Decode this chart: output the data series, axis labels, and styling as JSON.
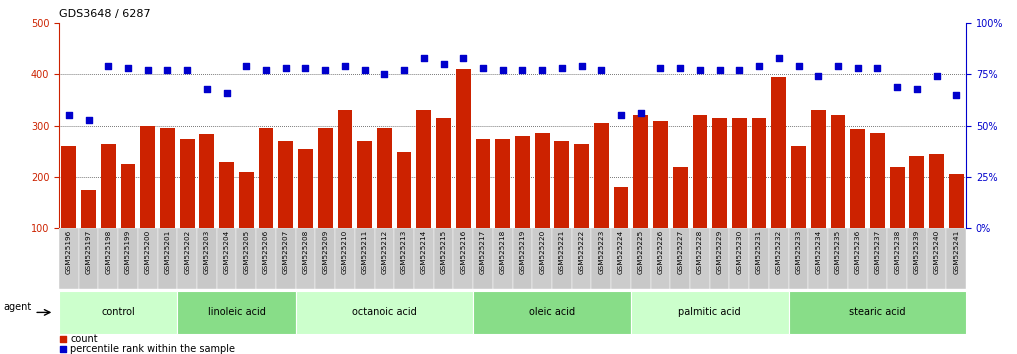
{
  "title": "GDS3648 / 6287",
  "categories": [
    "GSM525196",
    "GSM525197",
    "GSM525198",
    "GSM525199",
    "GSM525200",
    "GSM525201",
    "GSM525202",
    "GSM525203",
    "GSM525204",
    "GSM525205",
    "GSM525206",
    "GSM525207",
    "GSM525208",
    "GSM525209",
    "GSM525210",
    "GSM525211",
    "GSM525212",
    "GSM525213",
    "GSM525214",
    "GSM525215",
    "GSM525216",
    "GSM525217",
    "GSM525218",
    "GSM525219",
    "GSM525220",
    "GSM525221",
    "GSM525222",
    "GSM525223",
    "GSM525224",
    "GSM525225",
    "GSM525226",
    "GSM525227",
    "GSM525228",
    "GSM525229",
    "GSM525230",
    "GSM525231",
    "GSM525232",
    "GSM525233",
    "GSM525234",
    "GSM525235",
    "GSM525236",
    "GSM525237",
    "GSM525238",
    "GSM525239",
    "GSM525240",
    "GSM525241"
  ],
  "bar_values": [
    260,
    175,
    265,
    225,
    300,
    295,
    275,
    283,
    230,
    210,
    295,
    270,
    255,
    295,
    330,
    270,
    295,
    248,
    330,
    315,
    410,
    275,
    275,
    280,
    285,
    270,
    265,
    305,
    180,
    320,
    310,
    220,
    320,
    315,
    315,
    315,
    395,
    260,
    330,
    320,
    293,
    285,
    220,
    240,
    245,
    205
  ],
  "blue_values_pct": [
    55,
    53,
    79,
    78,
    77,
    77,
    77,
    68,
    66,
    79,
    77,
    78,
    78,
    77,
    79,
    77,
    75,
    77,
    83,
    80,
    83,
    78,
    77,
    77,
    77,
    78,
    79,
    77,
    55,
    56,
    78,
    78,
    77,
    77,
    77,
    79,
    83,
    79,
    74,
    79,
    78,
    78,
    69,
    68,
    74,
    65
  ],
  "groups": [
    {
      "label": "control",
      "start": 0,
      "end": 6
    },
    {
      "label": "linoleic acid",
      "start": 6,
      "end": 12
    },
    {
      "label": "octanoic acid",
      "start": 12,
      "end": 21
    },
    {
      "label": "oleic acid",
      "start": 21,
      "end": 29
    },
    {
      "label": "palmitic acid",
      "start": 29,
      "end": 37
    },
    {
      "label": "stearic acid",
      "start": 37,
      "end": 46
    }
  ],
  "group_colors": [
    "#ccffcc",
    "#88dd88",
    "#ccffcc",
    "#88dd88",
    "#ccffcc",
    "#88dd88"
  ],
  "bar_color": "#cc2200",
  "dot_color": "#0000cc",
  "left_ylim": [
    100,
    500
  ],
  "right_ylim": [
    0,
    100
  ],
  "left_yticks": [
    100,
    200,
    300,
    400,
    500
  ],
  "right_yticks": [
    0,
    25,
    50,
    75,
    100
  ],
  "grid_lines": [
    200,
    300,
    400
  ],
  "agent_label": "agent",
  "tick_bg_color": "#cccccc",
  "legend_items": [
    {
      "color": "#cc2200",
      "label": "count"
    },
    {
      "color": "#0000cc",
      "label": "percentile rank within the sample"
    }
  ]
}
